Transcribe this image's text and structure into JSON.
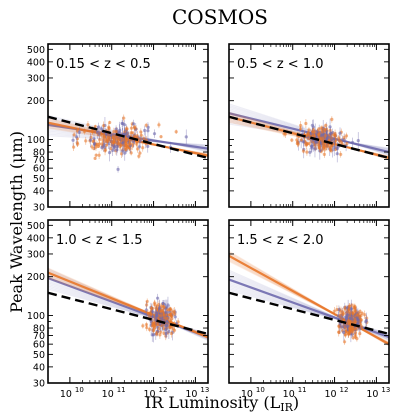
{
  "figure": {
    "title": "COSMOS",
    "xlabel": "IR Luminosity (L",
    "xlabel_sub": "IR",
    "xlabel_close": ")",
    "ylabel": "Peak Wavelength (μm)"
  },
  "chart_data": {
    "type": "scatter",
    "title": "COSMOS",
    "xlabel": "IR Luminosity (L_IR)",
    "ylabel": "Peak Wavelength (μm)",
    "xscale": "log",
    "yscale": "log",
    "xlim": [
      3000000000,
      20000000000000
    ],
    "ylim": [
      30,
      550
    ],
    "x_ticks": [
      10000000000,
      100000000000,
      1000000000000,
      10000000000000
    ],
    "x_tick_labels": [
      "10",
      "10",
      "10",
      "10"
    ],
    "x_tick_exponents": [
      "10",
      "11",
      "12",
      "13"
    ],
    "y_ticks": [
      30,
      40,
      50,
      60,
      70,
      80,
      90,
      100,
      200,
      300,
      400,
      500
    ],
    "y_tick_labels": [
      "30",
      "40",
      "50",
      "60",
      "70",
      "80",
      "",
      "100",
      "200",
      "300",
      "400",
      "500"
    ],
    "grid": false,
    "colors": {
      "series_a": "#e8772a",
      "series_b": "#6f6aae",
      "reference": "#000000"
    },
    "panels": [
      {
        "label": "0.15 < z < 0.5",
        "cloud": {
          "x_center": 150000000000,
          "y_center": 100,
          "x_spread_dex": 0.75,
          "y_spread_dex": 0.09
        },
        "orange_fit": {
          "x": [
            3000000000,
            20000000000000
          ],
          "y": [
            135,
            75
          ]
        },
        "purple_fit": {
          "x": [
            3000000000,
            20000000000000
          ],
          "y": [
            130,
            85
          ]
        },
        "reference": {
          "x": [
            3000000000,
            20000000000000
          ],
          "y": [
            150,
            72
          ]
        }
      },
      {
        "label": "0.5 < z < 1.0",
        "cloud": {
          "x_center": 500000000000,
          "y_center": 100,
          "x_spread_dex": 0.5,
          "y_spread_dex": 0.08
        },
        "orange_fit": {
          "x": [
            3000000000,
            20000000000000
          ],
          "y": [
            150,
            72
          ]
        },
        "purple_fit": {
          "x": [
            3000000000,
            20000000000000
          ],
          "y": [
            160,
            80
          ]
        },
        "reference": {
          "x": [
            3000000000,
            20000000000000
          ],
          "y": [
            150,
            72
          ]
        }
      },
      {
        "label": "1.0 < z < 1.5",
        "cloud": {
          "x_center": 1500000000000,
          "y_center": 95,
          "x_spread_dex": 0.3,
          "y_spread_dex": 0.09
        },
        "orange_fit": {
          "x": [
            3000000000,
            20000000000000
          ],
          "y": [
            215,
            68
          ]
        },
        "purple_fit": {
          "x": [
            3000000000,
            20000000000000
          ],
          "y": [
            195,
            68
          ]
        },
        "reference": {
          "x": [
            3000000000,
            20000000000000
          ],
          "y": [
            150,
            72
          ]
        }
      },
      {
        "label": "1.5 < z < 2.0",
        "cloud": {
          "x_center": 2500000000000,
          "y_center": 90,
          "x_spread_dex": 0.25,
          "y_spread_dex": 0.09
        },
        "orange_fit": {
          "x": [
            3000000000,
            20000000000000
          ],
          "y": [
            290,
            60
          ]
        },
        "purple_fit": {
          "x": [
            3000000000,
            20000000000000
          ],
          "y": [
            190,
            68
          ]
        },
        "reference": {
          "x": [
            3000000000,
            20000000000000
          ],
          "y": [
            150,
            72
          ]
        }
      }
    ]
  }
}
